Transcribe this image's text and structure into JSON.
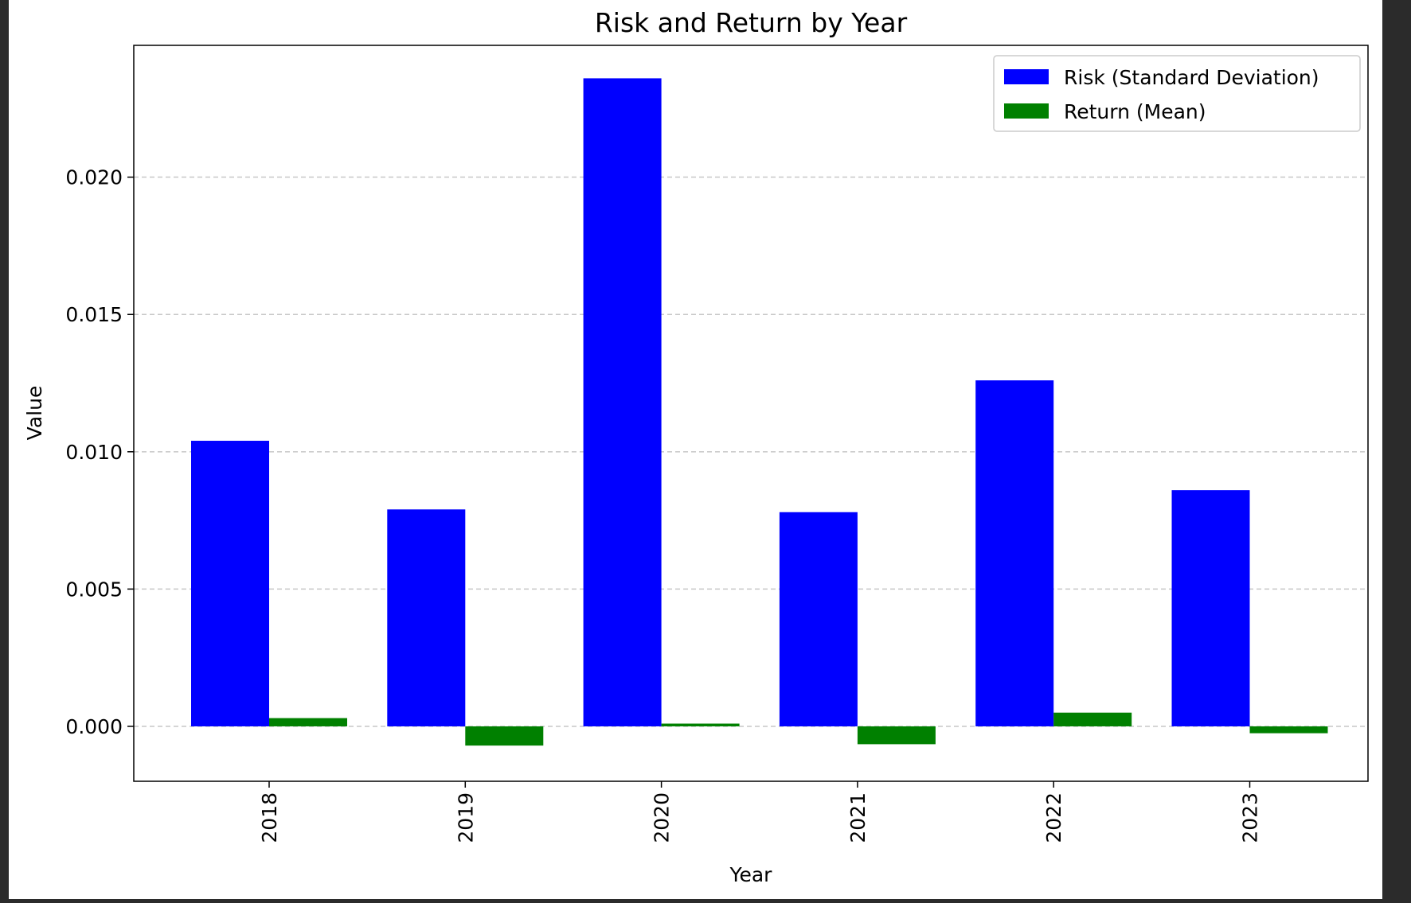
{
  "chart_data": {
    "type": "bar",
    "title": "Risk and Return by Year",
    "xlabel": "Year",
    "ylabel": "Value",
    "categories": [
      "2018",
      "2019",
      "2020",
      "2021",
      "2022",
      "2023"
    ],
    "series": [
      {
        "name": "Risk (Standard Deviation)",
        "color": "#0000ff",
        "values": [
          0.0104,
          0.0079,
          0.0236,
          0.0078,
          0.0126,
          0.0086
        ]
      },
      {
        "name": "Return (Mean)",
        "color": "#008000",
        "values": [
          0.0003,
          -0.0007,
          0.0001,
          -0.00065,
          0.0005,
          -0.00025
        ]
      }
    ],
    "ylim": [
      -0.002,
      0.0248
    ],
    "yticks": [
      0.0,
      0.005,
      0.01,
      0.015,
      0.02
    ],
    "ytick_labels": [
      "0.000",
      "0.005",
      "0.010",
      "0.015",
      "0.020"
    ],
    "grid": "y-dashed",
    "legend_position": "top-right"
  }
}
